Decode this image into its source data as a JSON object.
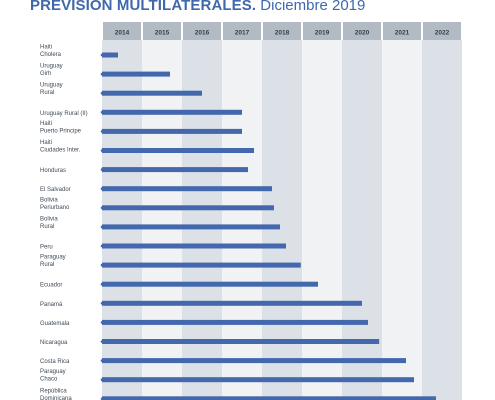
{
  "title": {
    "bold": "PREVISION MULTILATERALES.",
    "light": " Diciembre 2019"
  },
  "chart_data": {
    "type": "bar",
    "orientation": "horizontal",
    "years": [
      "2014",
      "2015",
      "2016",
      "2017",
      "2018",
      "2019",
      "2020",
      "2021",
      "2022"
    ],
    "year_start": 2014,
    "year_end": 2023,
    "categories": [
      {
        "lines": [
          "Haiti",
          "Cholera"
        ],
        "end": 2014.4
      },
      {
        "lines": [
          "Uruguay",
          "Girh"
        ],
        "end": 2015.7
      },
      {
        "lines": [
          "Uruguay",
          "Rural"
        ],
        "end": 2016.5
      },
      {
        "lines": [
          "Uruguay Rural (II)"
        ],
        "end": 2017.5
      },
      {
        "lines": [
          "Haiti",
          "Puerto Principe"
        ],
        "end": 2017.5
      },
      {
        "lines": [
          "Haiti",
          "Ciudades Inter."
        ],
        "end": 2017.8
      },
      {
        "lines": [
          "Honduras"
        ],
        "end": 2017.65
      },
      {
        "lines": [
          "El Salvador"
        ],
        "end": 2018.25
      },
      {
        "lines": [
          "Bolivia",
          "Periurbano"
        ],
        "end": 2018.3
      },
      {
        "lines": [
          "Bolivia",
          "Rural"
        ],
        "end": 2018.45
      },
      {
        "lines": [
          "Peru"
        ],
        "end": 2018.6
      },
      {
        "lines": [
          "Paraguay",
          "Rural"
        ],
        "end": 2018.97
      },
      {
        "lines": [
          "Ecuador"
        ],
        "end": 2019.4
      },
      {
        "lines": [
          "Panamá"
        ],
        "end": 2020.5
      },
      {
        "lines": [
          "Guatemala"
        ],
        "end": 2020.65
      },
      {
        "lines": [
          "Nicaragua"
        ],
        "end": 2020.93
      },
      {
        "lines": [
          "Costa Rica"
        ],
        "end": 2021.6
      },
      {
        "lines": [
          "Paraguay",
          "Chaco"
        ],
        "end": 2021.8
      },
      {
        "lines": [
          "República",
          "Dominicana"
        ],
        "end": 2022.35
      }
    ],
    "colors": {
      "bar": "#4368ad",
      "header_cell": "#b2bac4",
      "column_dark": "#dce1e7",
      "column_light": "#f0f2f4",
      "dot": "#4368ad",
      "label_text": "#3f4a56",
      "year_text": "#343e48"
    }
  }
}
